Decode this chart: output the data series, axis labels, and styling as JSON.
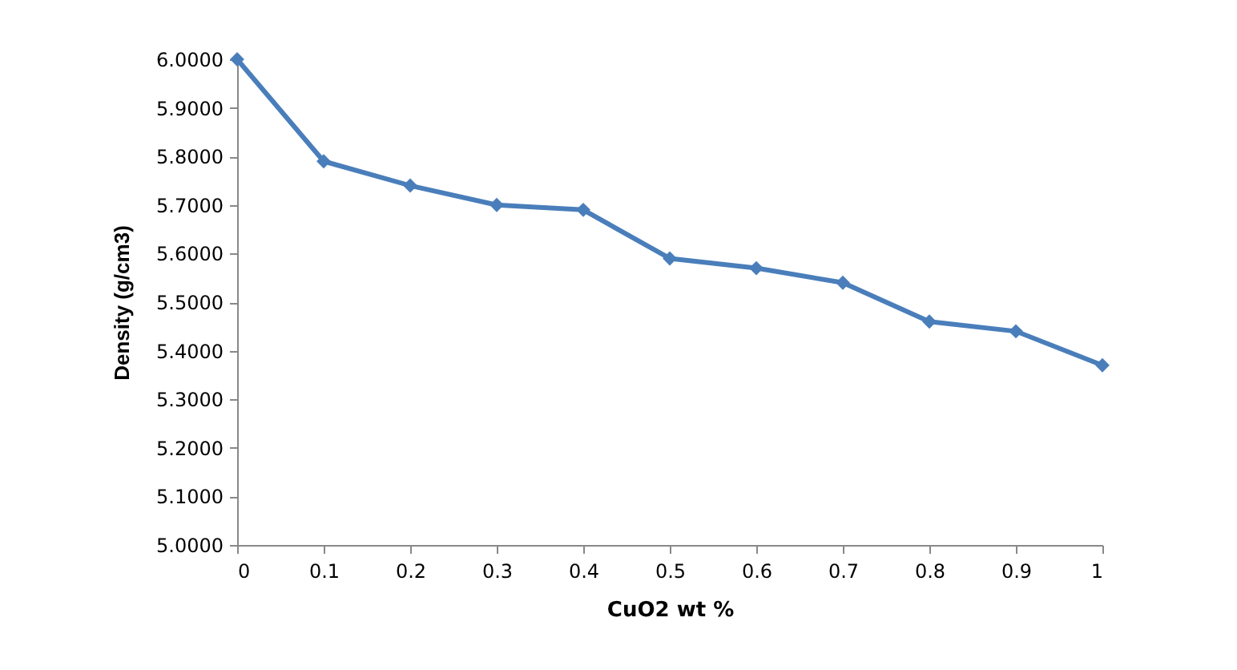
{
  "chart_data": {
    "type": "line",
    "xlabel": "CuO2 wt %",
    "ylabel": "Density (g/cm3)",
    "x": [
      0,
      0.1,
      0.2,
      0.3,
      0.4,
      0.5,
      0.6,
      0.7,
      0.8,
      0.9,
      1
    ],
    "series": [
      {
        "color": "#4a7ebb",
        "values": [
          6.0,
          5.79,
          5.74,
          5.7,
          5.69,
          5.59,
          5.57,
          5.54,
          5.46,
          5.44,
          5.37
        ]
      }
    ],
    "xlim": [
      0,
      1
    ],
    "xticks": [
      0,
      0.1,
      0.2,
      0.3,
      0.4,
      0.5,
      0.6,
      0.7,
      0.8,
      0.9,
      1
    ],
    "ylim": [
      5,
      6
    ],
    "yticks": [
      {
        "value": 5,
        "label": "5.0000"
      },
      {
        "value": 5.1,
        "label": "5.1000"
      },
      {
        "value": 5.2,
        "label": "5.2000"
      },
      {
        "value": 5.3,
        "label": "5.3000"
      },
      {
        "value": 5.4,
        "label": "5.4000"
      },
      {
        "value": 5.5,
        "label": "5.5000"
      },
      {
        "value": 5.6,
        "label": "5.6000"
      },
      {
        "value": 5.7,
        "label": "5.7000"
      },
      {
        "value": 5.8,
        "label": "5.8000"
      },
      {
        "value": 5.9,
        "label": "5.9000"
      },
      {
        "value": 6,
        "label": "6.0000"
      }
    ],
    "grid": false,
    "marker": "diamond",
    "line_style": "solid"
  }
}
